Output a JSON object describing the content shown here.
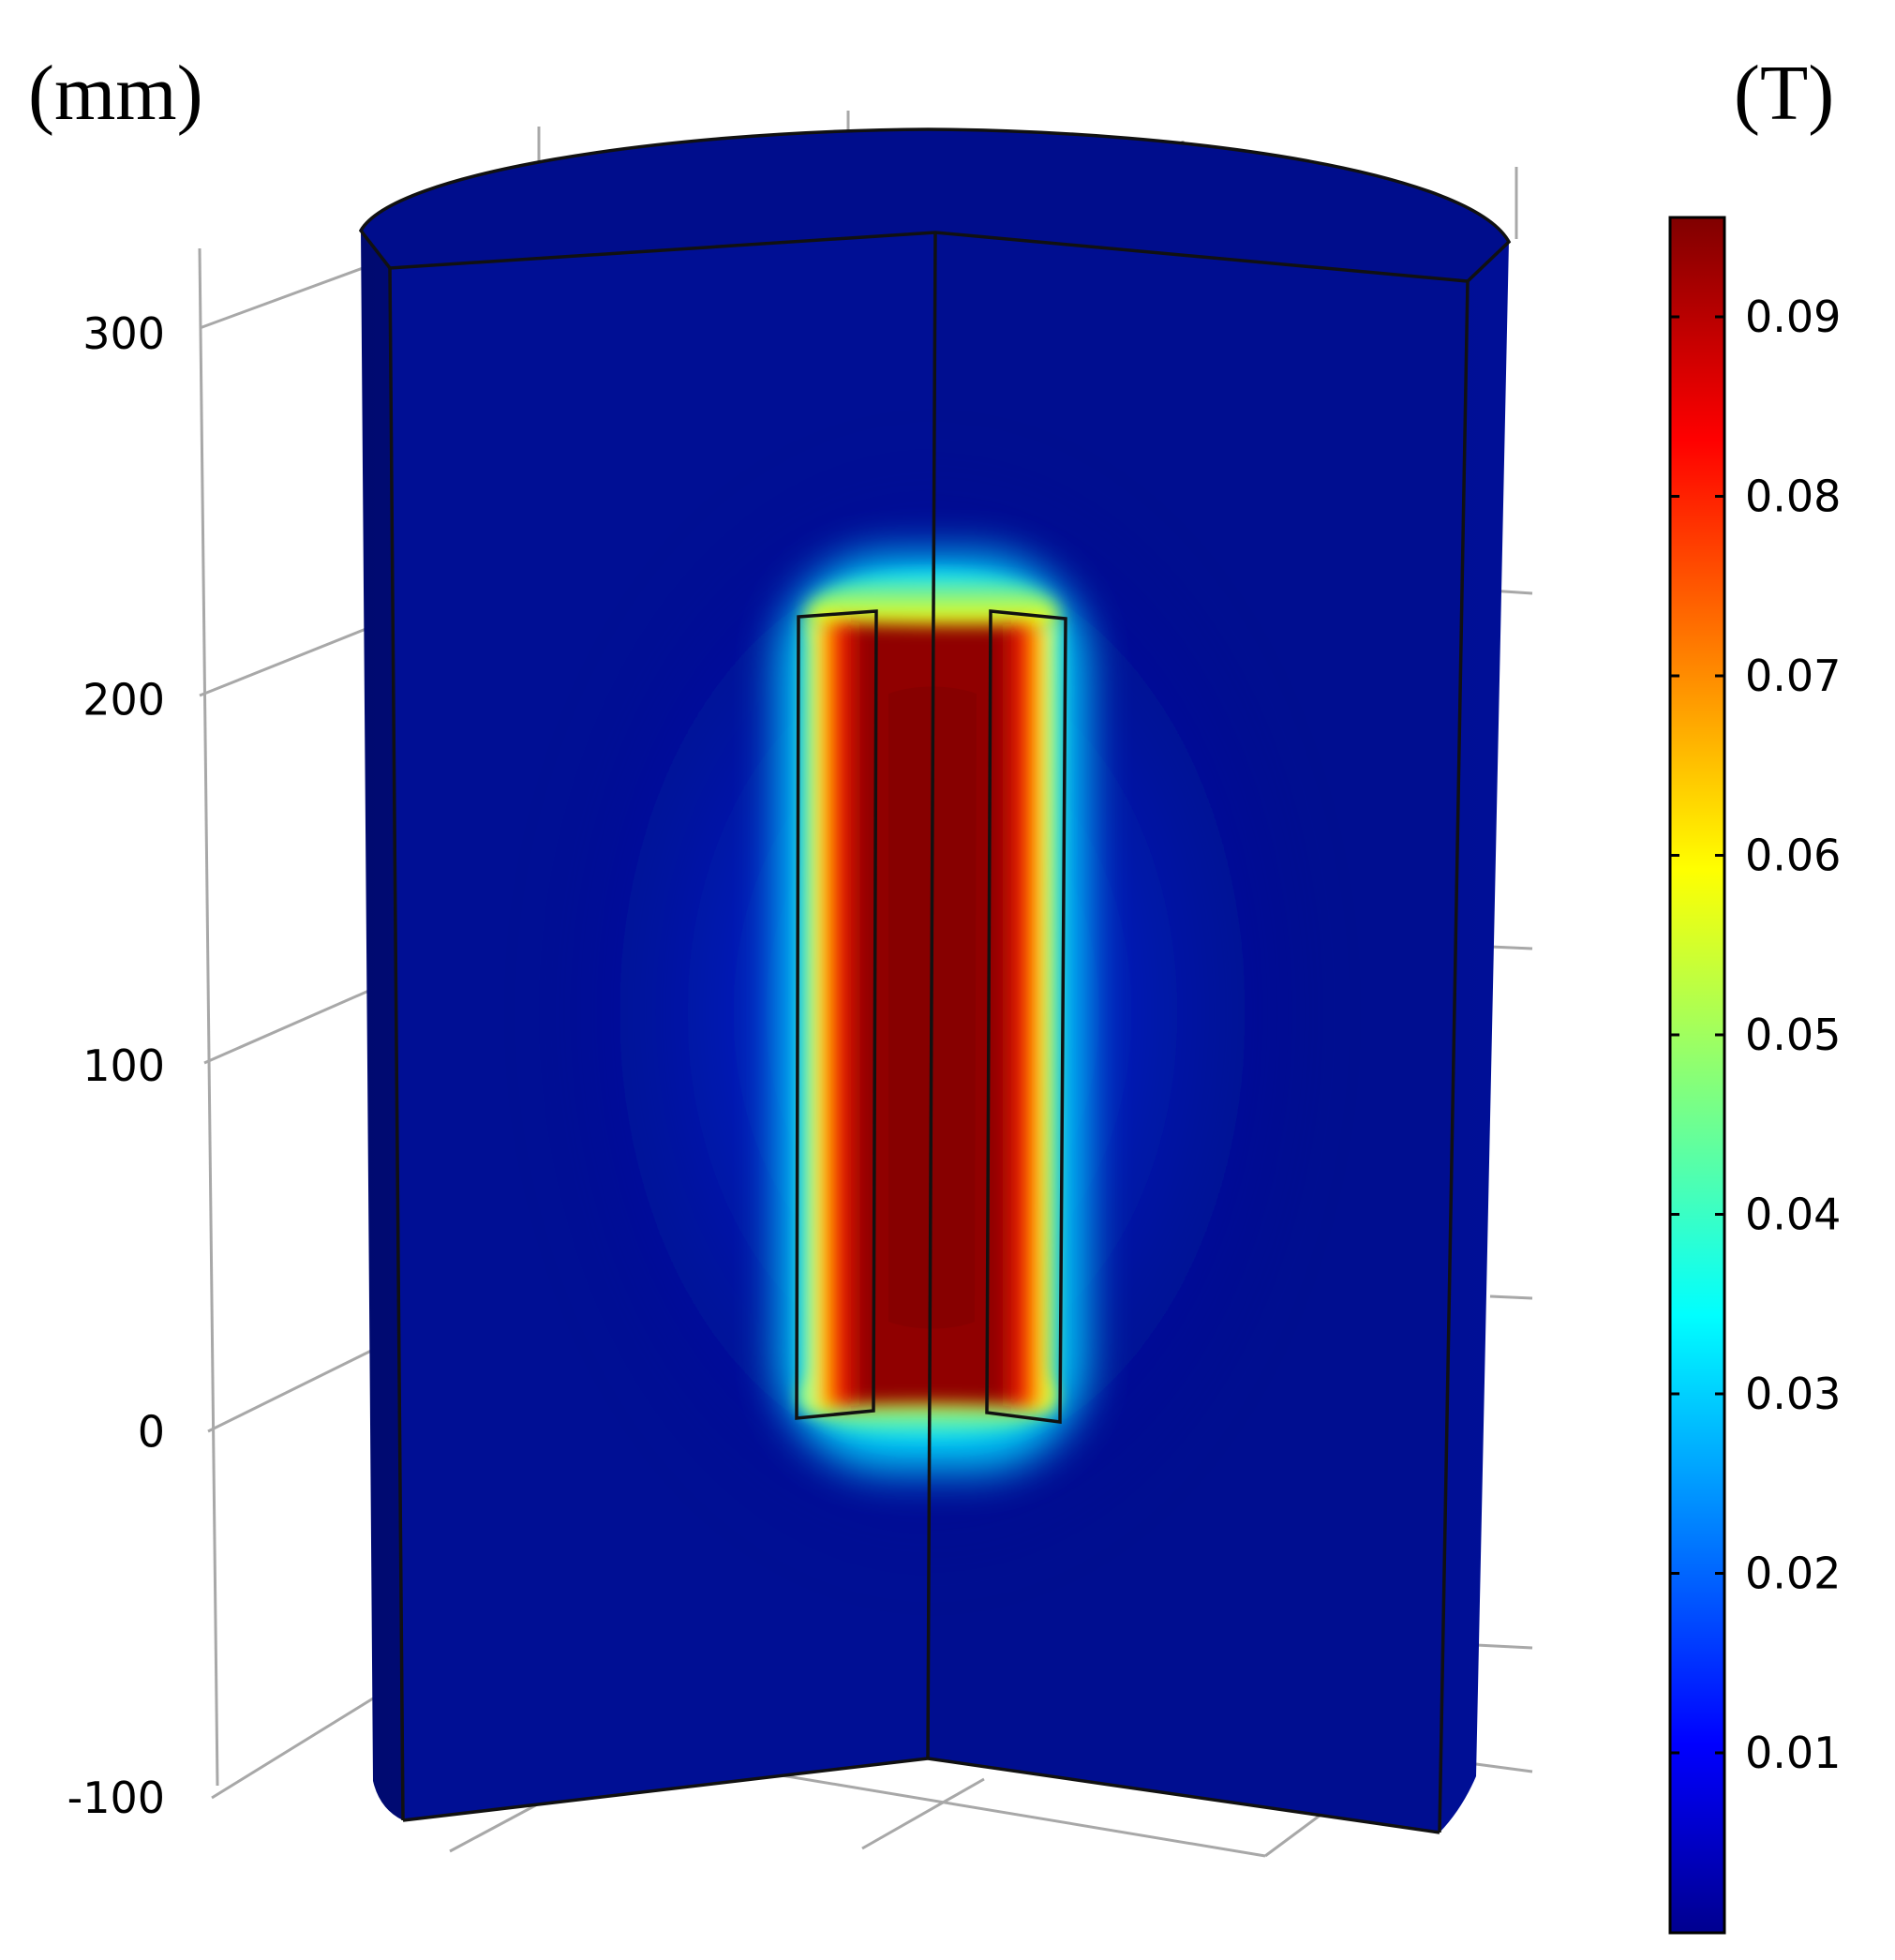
{
  "units": {
    "length": "(mm)",
    "field": "(T)"
  },
  "chart_data": {
    "type": "heatmap",
    "title": "",
    "z_axis": {
      "ticks": [
        300,
        200,
        100,
        0,
        -100
      ],
      "tick_labels": [
        "300",
        "200",
        "100",
        "0",
        "-100"
      ],
      "unit": "(mm)"
    },
    "colorbar": {
      "unit": "(T)",
      "min": 0,
      "max": 0.095,
      "ticks": [
        0.09,
        0.08,
        0.07,
        0.06,
        0.05,
        0.04,
        0.03,
        0.02,
        0.01
      ],
      "tick_labels": [
        "0.09",
        "0.08",
        "0.07",
        "0.06",
        "0.05",
        "0.04",
        "0.03",
        "0.02",
        "0.01"
      ],
      "colormap": "jet"
    },
    "field_summary": {
      "background_value": 0.001,
      "peak_value": 0.095,
      "coil_z_range": [
        0,
        220
      ]
    },
    "grid": true
  },
  "colors": {
    "background": "#ffffff",
    "cylinder_base": "#000d8c",
    "edges": "#111111",
    "grid": "#a8a8a8"
  }
}
